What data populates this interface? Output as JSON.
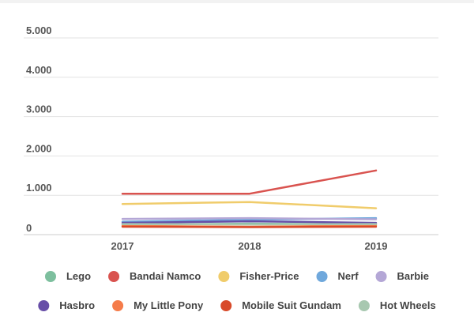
{
  "chart_data": {
    "type": "line",
    "title": "",
    "xlabel": "",
    "ylabel": "",
    "categories": [
      "2017",
      "2018",
      "2019"
    ],
    "ylim": [
      0,
      5000
    ],
    "yticks": [
      0,
      1000,
      2000,
      3000,
      4000,
      5000
    ],
    "ytick_labels": [
      "0",
      "1.000",
      "2.000",
      "3.000",
      "4.000",
      "5.000"
    ],
    "legend_position": "bottom",
    "grid": true,
    "series": [
      {
        "name": "Lego",
        "color": "#7dbf9e",
        "values": [
          250,
          280,
          260
        ]
      },
      {
        "name": "Bandai Namco",
        "color": "#d9534f",
        "values": [
          1040,
          1040,
          1630
        ]
      },
      {
        "name": "Fisher-Price",
        "color": "#f0cc6b",
        "values": [
          780,
          830,
          670
        ]
      },
      {
        "name": "Nerf",
        "color": "#6fa8dc",
        "values": [
          330,
          380,
          420
        ]
      },
      {
        "name": "Barbie",
        "color": "#b4a7d6",
        "values": [
          400,
          420,
          390
        ]
      },
      {
        "name": "Hasbro",
        "color": "#674ea7",
        "values": [
          300,
          340,
          300
        ]
      },
      {
        "name": "My Little Pony",
        "color": "#f57c4a",
        "values": [
          220,
          200,
          230
        ]
      },
      {
        "name": "Mobile Suit Gundam",
        "color": "#d84a2a",
        "values": [
          200,
          190,
          200
        ]
      },
      {
        "name": "Hot Wheels",
        "color": "#a8c8b0",
        "values": [
          270,
          260,
          270
        ]
      }
    ]
  }
}
